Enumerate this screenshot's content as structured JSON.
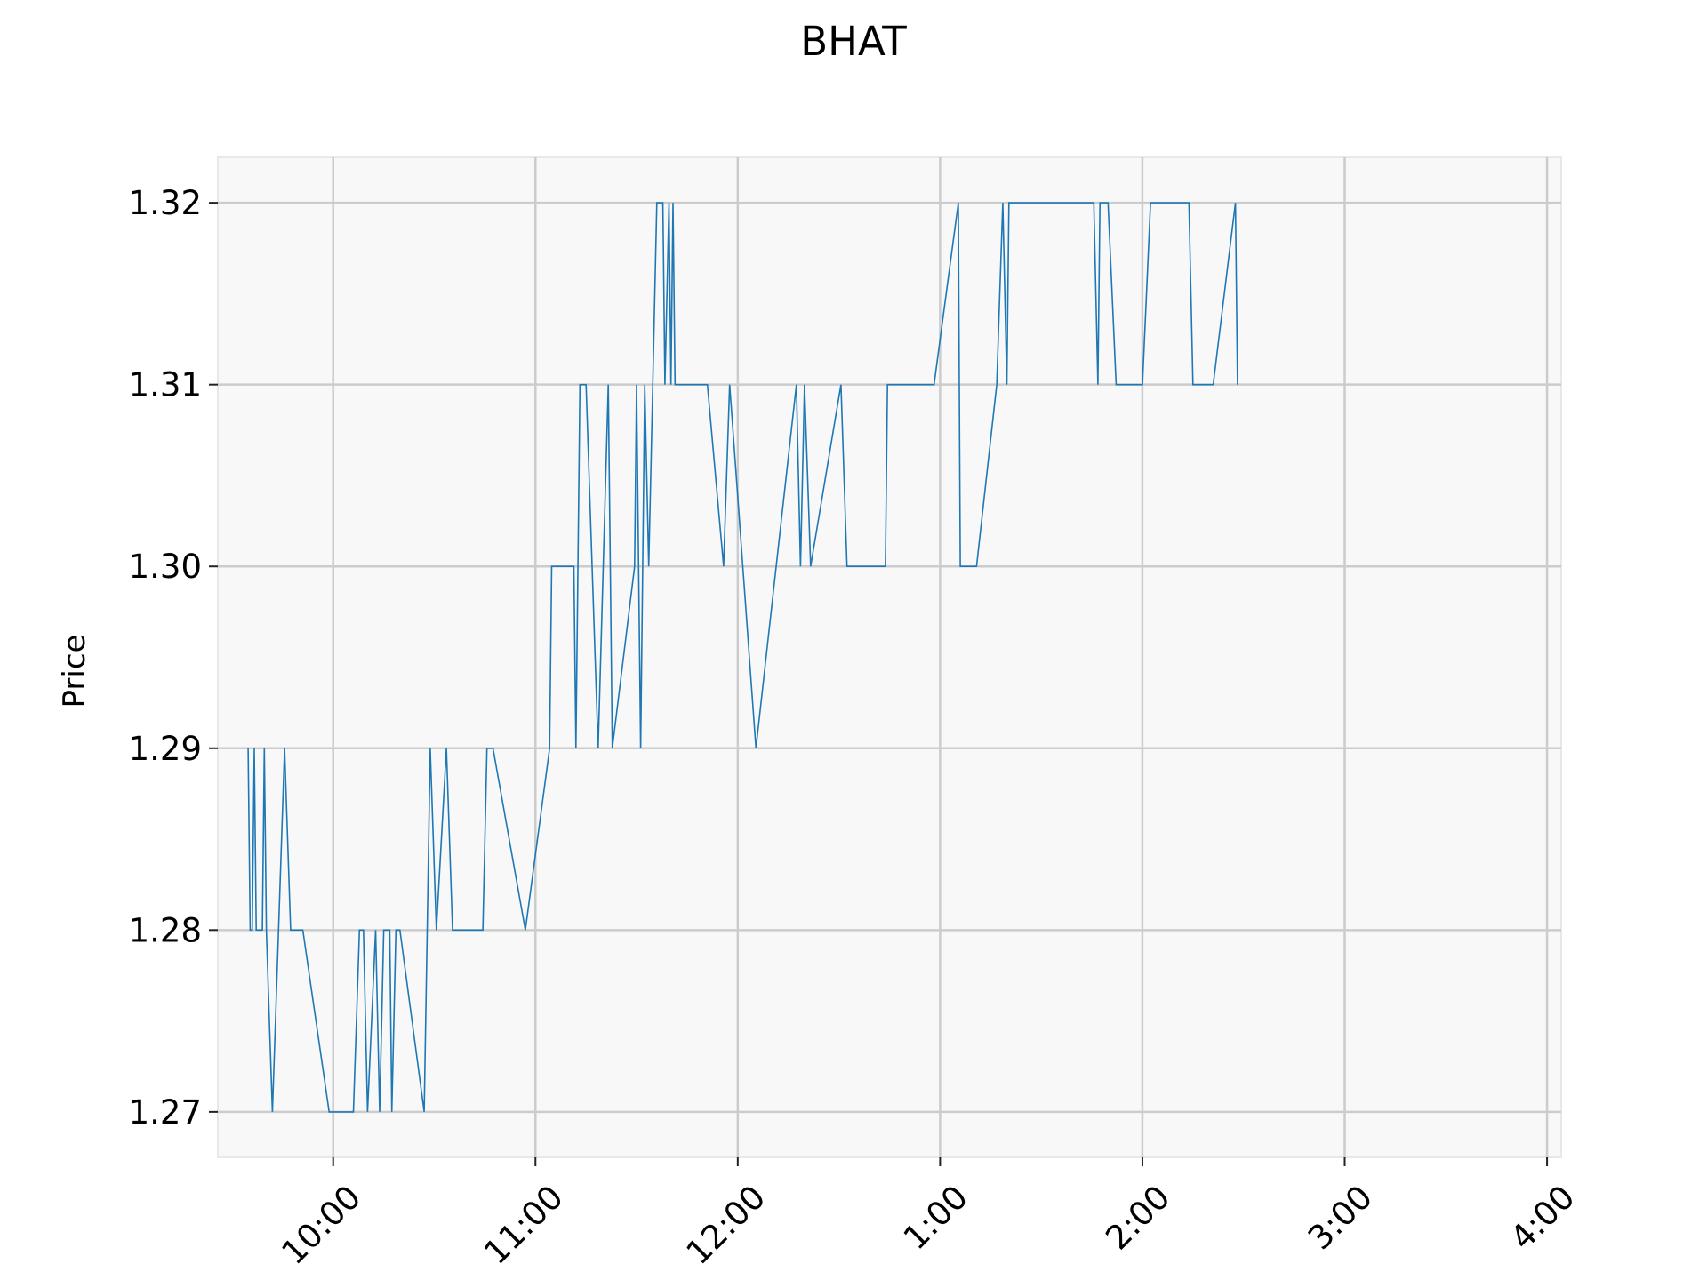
{
  "chart_data": {
    "type": "line",
    "title": "BHAT",
    "xlabel": "",
    "ylabel": "Price",
    "xlim": [
      9.43,
      16.07
    ],
    "ylim": [
      1.2675,
      1.3225
    ],
    "x_ticks": [
      {
        "value": 10,
        "label": "10:00"
      },
      {
        "value": 11,
        "label": "11:00"
      },
      {
        "value": 12,
        "label": "12:00"
      },
      {
        "value": 13,
        "label": "1:00"
      },
      {
        "value": 14,
        "label": "2:00"
      },
      {
        "value": 15,
        "label": "3:00"
      },
      {
        "value": 16,
        "label": "4:00"
      }
    ],
    "y_ticks": [
      {
        "value": 1.27,
        "label": "1.27"
      },
      {
        "value": 1.28,
        "label": "1.28"
      },
      {
        "value": 1.29,
        "label": "1.29"
      },
      {
        "value": 1.3,
        "label": "1.30"
      },
      {
        "value": 1.31,
        "label": "1.31"
      },
      {
        "value": 1.32,
        "label": "1.32"
      }
    ],
    "grid": true,
    "series": [
      {
        "color": "#1f77b4",
        "x": [
          9.58,
          9.59,
          9.6,
          9.61,
          9.62,
          9.65,
          9.66,
          9.67,
          9.7,
          9.73,
          9.76,
          9.79,
          9.82,
          9.85,
          9.98,
          10.1,
          10.13,
          10.15,
          10.17,
          10.21,
          10.23,
          10.25,
          10.28,
          10.29,
          10.31,
          10.33,
          10.45,
          10.48,
          10.51,
          10.56,
          10.59,
          10.74,
          10.76,
          10.79,
          10.95,
          11.07,
          11.08,
          11.19,
          11.2,
          11.22,
          11.25,
          11.31,
          11.36,
          11.38,
          11.49,
          11.5,
          11.52,
          11.54,
          11.56,
          11.6,
          11.63,
          11.64,
          11.66,
          11.67,
          11.68,
          11.69,
          11.77,
          11.85,
          11.93,
          11.96,
          12.09,
          12.29,
          12.31,
          12.33,
          12.36,
          12.51,
          12.54,
          12.73,
          12.74,
          12.97,
          13.09,
          13.1,
          13.18,
          13.28,
          13.31,
          13.33,
          13.34,
          13.38,
          13.76,
          13.78,
          13.79,
          13.83,
          13.87,
          14.0,
          14.04,
          14.23,
          14.25,
          14.35,
          14.46,
          14.47
        ],
        "y": [
          1.29,
          1.28,
          1.28,
          1.29,
          1.28,
          1.28,
          1.29,
          1.28,
          1.27,
          1.28,
          1.29,
          1.28,
          1.28,
          1.28,
          1.27,
          1.27,
          1.28,
          1.28,
          1.27,
          1.28,
          1.27,
          1.28,
          1.28,
          1.27,
          1.28,
          1.28,
          1.27,
          1.29,
          1.28,
          1.29,
          1.28,
          1.28,
          1.29,
          1.29,
          1.28,
          1.29,
          1.3,
          1.3,
          1.29,
          1.31,
          1.31,
          1.29,
          1.31,
          1.29,
          1.3,
          1.31,
          1.29,
          1.31,
          1.3,
          1.32,
          1.32,
          1.31,
          1.32,
          1.31,
          1.32,
          1.31,
          1.31,
          1.31,
          1.3,
          1.31,
          1.29,
          1.31,
          1.3,
          1.31,
          1.3,
          1.31,
          1.3,
          1.3,
          1.31,
          1.31,
          1.32,
          1.3,
          1.3,
          1.31,
          1.32,
          1.31,
          1.32,
          1.32,
          1.32,
          1.31,
          1.32,
          1.32,
          1.31,
          1.31,
          1.32,
          1.32,
          1.31,
          1.31,
          1.32,
          1.31
        ]
      }
    ]
  }
}
